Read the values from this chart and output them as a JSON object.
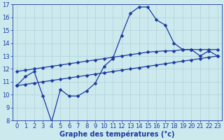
{
  "xlabel": "Graphe des températures (°c)",
  "xlim": [
    -0.5,
    23.5
  ],
  "ylim": [
    8,
    17
  ],
  "yticks": [
    8,
    9,
    10,
    11,
    12,
    13,
    14,
    15,
    16,
    17
  ],
  "xticks": [
    0,
    1,
    2,
    3,
    4,
    5,
    6,
    7,
    8,
    9,
    10,
    11,
    12,
    13,
    14,
    15,
    16,
    17,
    18,
    19,
    20,
    21,
    22,
    23
  ],
  "bg_color": "#cce9ee",
  "line_color": "#1a3a9e",
  "grid_color": "#b0d0d8",
  "temp_x": [
    0,
    1,
    2,
    3,
    4,
    5,
    6,
    7,
    8,
    9,
    10,
    11,
    12,
    13,
    14,
    15,
    16,
    17,
    18,
    19,
    20,
    21,
    22,
    23
  ],
  "temp_y": [
    10.7,
    11.4,
    11.8,
    9.9,
    7.9,
    10.4,
    9.9,
    9.9,
    10.3,
    10.9,
    12.2,
    12.8,
    14.6,
    16.3,
    16.8,
    16.8,
    15.8,
    15.4,
    14.0,
    13.5,
    13.5,
    13.0,
    13.4,
    13.0
  ],
  "trend_upper_x": [
    0,
    1,
    2,
    3,
    4,
    5,
    6,
    7,
    8,
    9,
    10,
    11,
    12,
    13,
    14,
    15,
    16,
    17,
    18,
    19,
    20,
    21,
    22,
    23
  ],
  "trend_upper_y": [
    11.8,
    11.9,
    12.0,
    12.1,
    12.2,
    12.3,
    12.4,
    12.5,
    12.6,
    12.7,
    12.8,
    12.9,
    13.0,
    13.1,
    13.2,
    13.3,
    13.35,
    13.4,
    13.4,
    13.5,
    13.5,
    13.5,
    13.5,
    13.5
  ],
  "trend_lower_x": [
    0,
    1,
    2,
    3,
    4,
    5,
    6,
    7,
    8,
    9,
    10,
    11,
    12,
    13,
    14,
    15,
    16,
    17,
    18,
    19,
    20,
    21,
    22,
    23
  ],
  "trend_lower_y": [
    10.7,
    10.8,
    10.9,
    11.0,
    11.1,
    11.2,
    11.3,
    11.4,
    11.5,
    11.6,
    11.7,
    11.8,
    11.9,
    12.0,
    12.1,
    12.2,
    12.3,
    12.4,
    12.5,
    12.6,
    12.7,
    12.8,
    12.9,
    13.0
  ],
  "marker_size": 2.5,
  "lw": 0.9,
  "font_size_label": 7,
  "font_size_tick": 6
}
